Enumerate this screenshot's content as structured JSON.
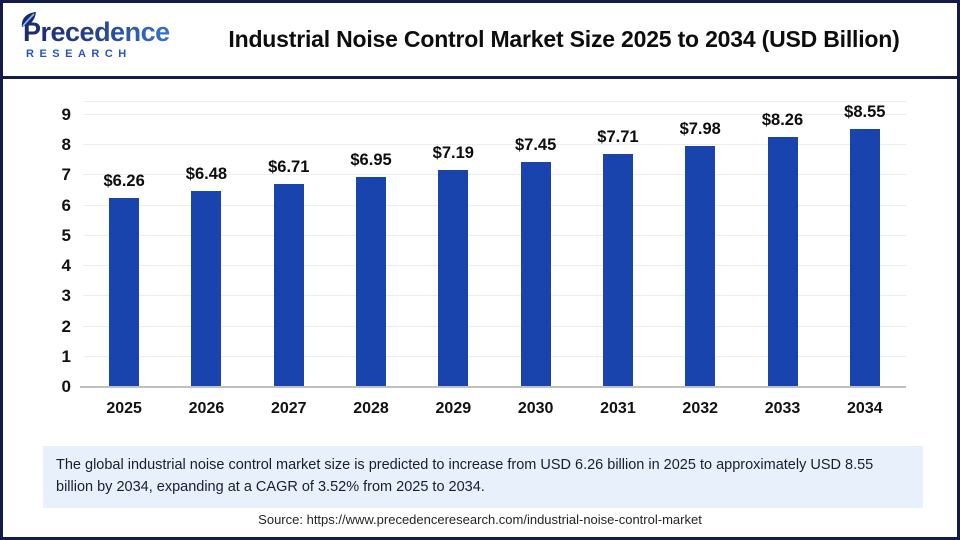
{
  "header": {
    "logo_name": "Precedence",
    "logo_subtitle": "RESEARCH",
    "title": "Industrial Noise Control Market Size 2025 to 2034 (USD Billion)"
  },
  "chart_data": {
    "type": "bar",
    "title": "Industrial Noise Control Market Size 2025 to 2034 (USD Billion)",
    "categories": [
      "2025",
      "2026",
      "2027",
      "2028",
      "2029",
      "2030",
      "2031",
      "2032",
      "2033",
      "2034"
    ],
    "values": [
      6.26,
      6.48,
      6.71,
      6.95,
      7.19,
      7.45,
      7.71,
      7.98,
      8.26,
      8.55
    ],
    "value_labels": [
      "$6.26",
      "$6.48",
      "$6.71",
      "$6.95",
      "$7.19",
      "$7.45",
      "$7.71",
      "$7.98",
      "$8.26",
      "$8.55"
    ],
    "xlabel": "",
    "ylabel": "",
    "ylim": [
      0,
      9
    ],
    "yticks": [
      0,
      1,
      2,
      3,
      4,
      5,
      6,
      7,
      8,
      9
    ],
    "grid": "horizontal",
    "legend": "none",
    "bar_color": "#1a44ad"
  },
  "note": {
    "text": "The global industrial noise control market size is predicted to increase from USD 6.26 billion in 2025 to approximately USD 8.55 billion by 2034, expanding at a CAGR of 3.52% from 2025 to 2034."
  },
  "source": {
    "text": "Source: https://www.precedenceresearch.com/industrial-noise-control-market"
  },
  "colors": {
    "bar": "#1a44ad",
    "frame_border": "#131b4a",
    "note_background": "#e8f1fb",
    "gridline": "#ededf0",
    "axis_baseline": "#c0c0c0",
    "logo_navy": "#1b2a6b",
    "logo_blue": "#3a7bd5",
    "logo_sub_blue": "#2356c5"
  }
}
